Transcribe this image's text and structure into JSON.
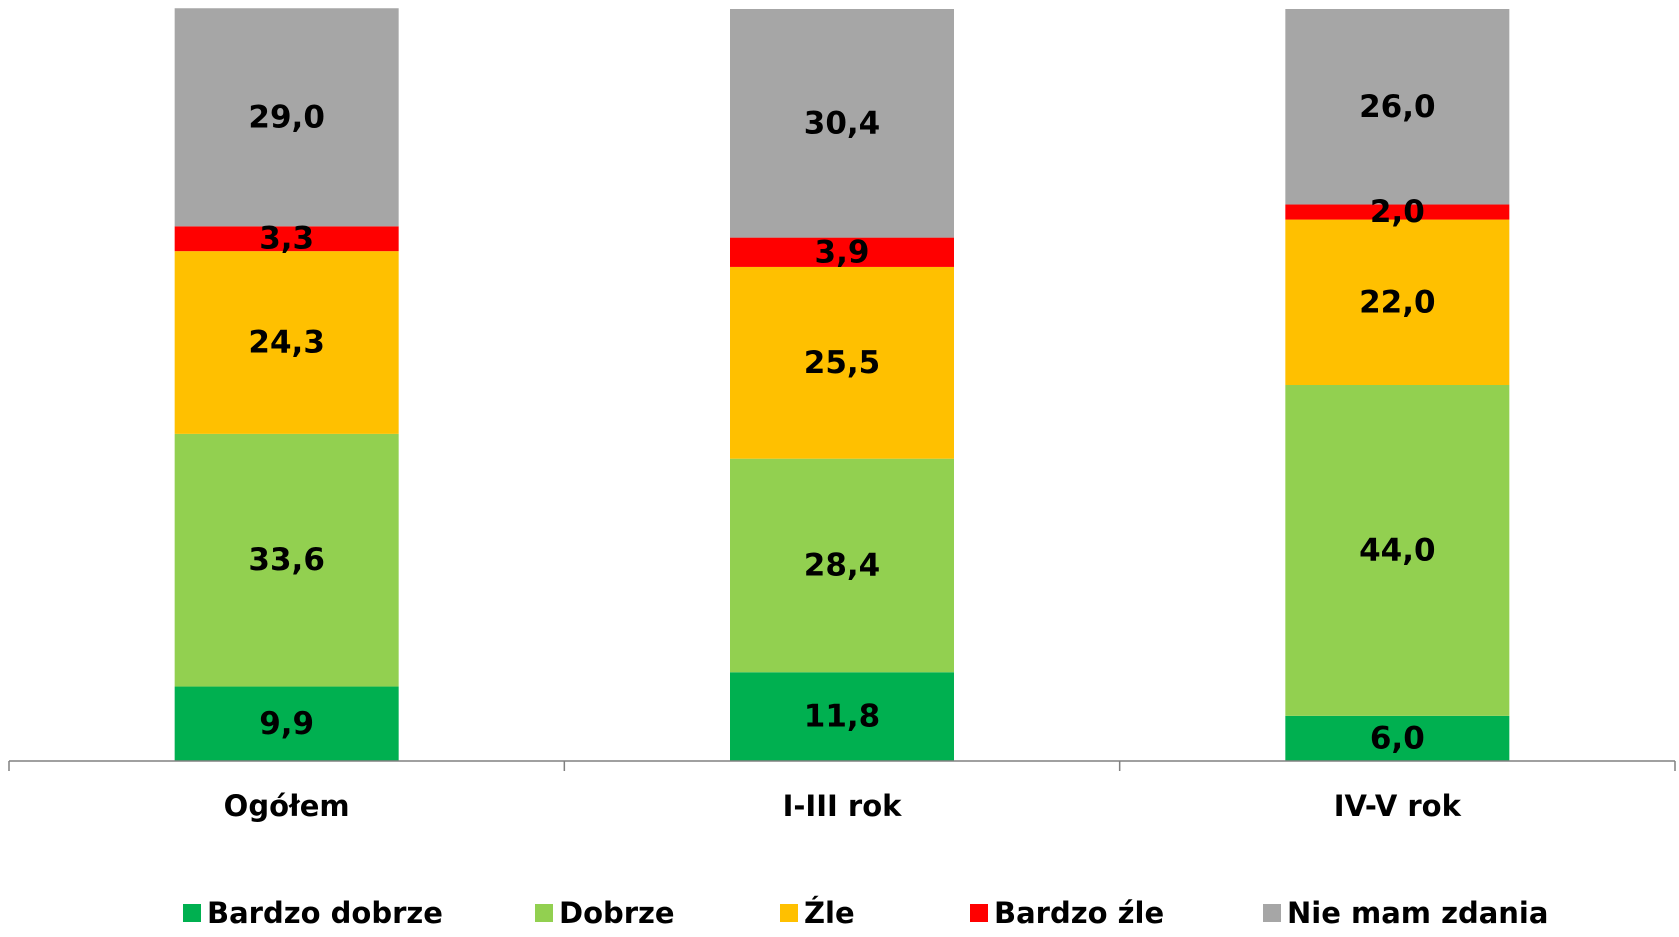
{
  "chart_data": {
    "type": "bar",
    "stacked": true,
    "categories": [
      "Ogółem",
      "I-III rok",
      "IV-V rok"
    ],
    "series": [
      {
        "name": "Bardzo dobrze",
        "color": "#00B050",
        "values": [
          9.9,
          11.8,
          6.0
        ],
        "labels": [
          "9,9",
          "11,8",
          "6,0"
        ]
      },
      {
        "name": "Dobrze",
        "color": "#92D050",
        "values": [
          33.6,
          28.4,
          44.0
        ],
        "labels": [
          "33,6",
          "28,4",
          "44,0"
        ]
      },
      {
        "name": "Źle",
        "color": "#FFC000",
        "values": [
          24.3,
          25.5,
          22.0
        ],
        "labels": [
          "24,3",
          "25,5",
          "22,0"
        ]
      },
      {
        "name": "Bardzo źle",
        "color": "#FF0000",
        "values": [
          3.3,
          3.9,
          2.0
        ],
        "labels": [
          "3,3",
          "3,9",
          "2,0"
        ]
      },
      {
        "name": "Nie mam zdania",
        "color": "#A6A6A6",
        "values": [
          29.0,
          30.4,
          26.0
        ],
        "labels": [
          "29,0",
          "30,4",
          "26,0"
        ]
      }
    ],
    "ylim": [
      0,
      100
    ],
    "grid": false,
    "legend": "bottom"
  }
}
